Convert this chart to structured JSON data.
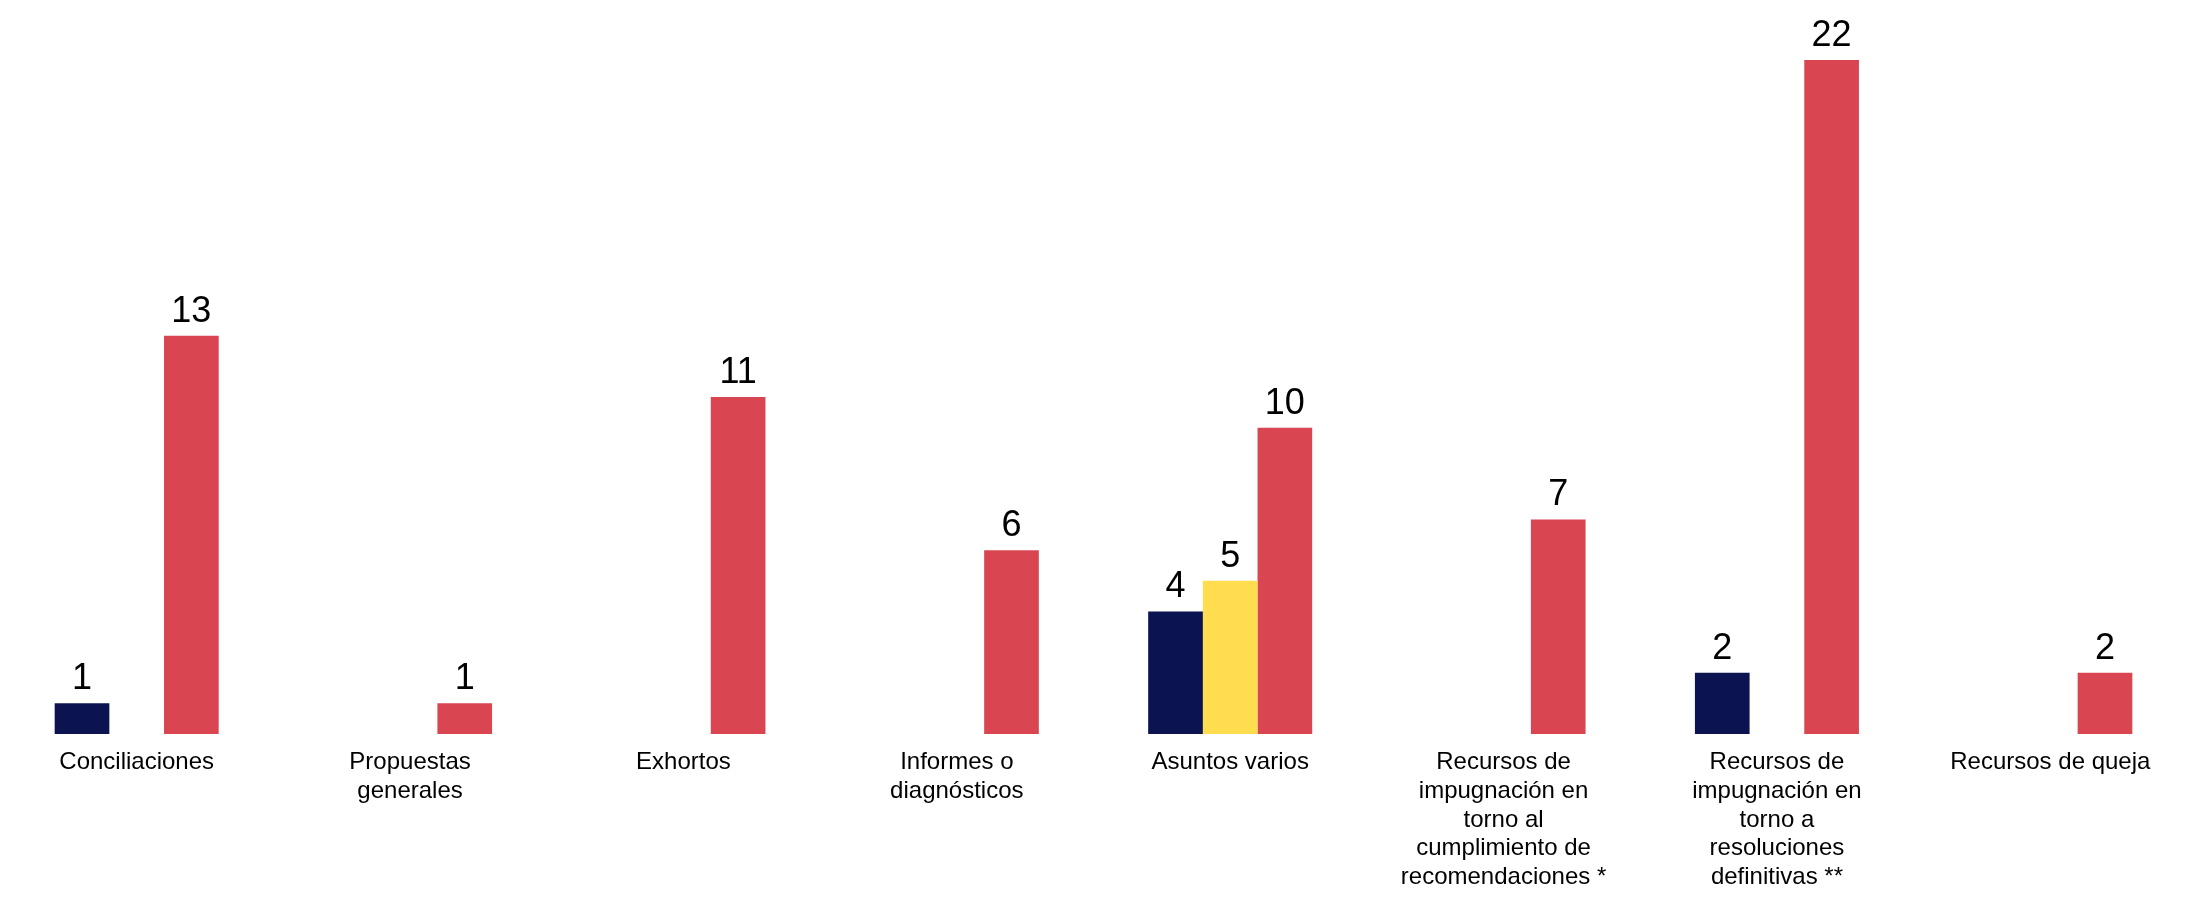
{
  "chart_data": {
    "type": "bar",
    "categories": [
      "Conciliaciones",
      "Propuestas generales",
      "Exhortos",
      "Informes o diagnósticos",
      "Asuntos varios",
      "Recursos de impugnación en torno al cumplimiento de recomendaciones *",
      "Recursos de impugnación en torno a resoluciones definitivas **",
      "Recursos de queja"
    ],
    "series": [
      {
        "color": "#0b1350",
        "values": [
          1,
          null,
          null,
          null,
          4,
          null,
          2,
          null
        ]
      },
      {
        "color": "#ffdd4f",
        "values": [
          null,
          null,
          null,
          null,
          5,
          null,
          null,
          null
        ]
      },
      {
        "color": "#d94652",
        "values": [
          13,
          1,
          11,
          6,
          10,
          7,
          22,
          2
        ]
      }
    ],
    "data_labels": true,
    "grid": false,
    "legend": false
  }
}
